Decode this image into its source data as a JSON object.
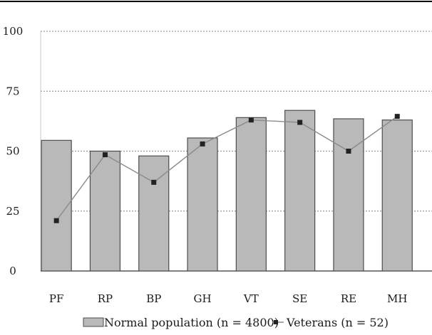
{
  "chart_data": {
    "type": "bar",
    "categories": [
      "PF",
      "RP",
      "BP",
      "GH",
      "VT",
      "SE",
      "RE",
      "MH"
    ],
    "series": [
      {
        "name": "Normal population (n = 4800)",
        "type": "bar",
        "values": [
          54.5,
          50,
          48,
          55.5,
          64,
          67,
          63.5,
          63
        ]
      },
      {
        "name": "Veterans (n = 52)",
        "type": "line",
        "values": [
          21,
          48.5,
          37,
          53,
          63,
          62,
          50,
          64.5
        ]
      }
    ],
    "y_ticks": [
      "0",
      "25",
      "50",
      "75",
      "100"
    ],
    "ylim": [
      0,
      100
    ],
    "grid": true,
    "legend_position": "bottom",
    "colors": {
      "bar_fill": "#b9b9b9",
      "bar_stroke": "#4d4d4d",
      "line": "#8a8a8a",
      "marker": "#222222",
      "grid": "#9a9a9a",
      "axis": "#333333",
      "top_rule": "#000000"
    }
  }
}
